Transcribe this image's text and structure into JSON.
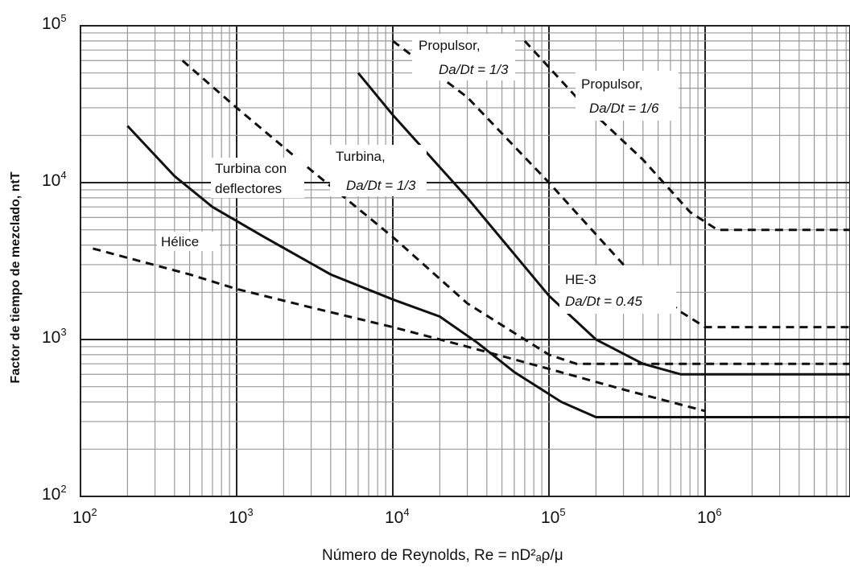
{
  "chart_data": {
    "type": "line",
    "xscale": "log",
    "yscale": "log",
    "xlim": [
      100,
      10000000
    ],
    "ylim": [
      100,
      100000
    ],
    "grid": true,
    "xlabel": "Número de Reynolds, Re = nD²ₐρ/μ",
    "ylabel": "Factor de tiempo de mezclado, ntT",
    "x_ticks": [
      {
        "base": "10",
        "exp": "2",
        "value": 100
      },
      {
        "base": "10",
        "exp": "3",
        "value": 1000
      },
      {
        "base": "10",
        "exp": "4",
        "value": 10000
      },
      {
        "base": "10",
        "exp": "5",
        "value": 100000
      },
      {
        "base": "10",
        "exp": "6",
        "value": 1000000
      }
    ],
    "y_ticks": [
      {
        "base": "10",
        "exp": "2",
        "value": 100
      },
      {
        "base": "10",
        "exp": "3",
        "value": 1000
      },
      {
        "base": "10",
        "exp": "4",
        "value": 10000
      },
      {
        "base": "10",
        "exp": "5",
        "value": 100000
      }
    ],
    "series": [
      {
        "name": "Turbina con deflectores",
        "style": "solid",
        "x": [
          200,
          400,
          700,
          1500,
          4000,
          10000,
          20000,
          35000,
          60000,
          120000,
          200000,
          1000000,
          10000000
        ],
        "y": [
          23000,
          11000,
          7000,
          4500,
          2600,
          1800,
          1400,
          950,
          620,
          400,
          320,
          320,
          320
        ]
      },
      {
        "name": "Turbina, Da/Dt = 1/3",
        "style": "dashed",
        "x": [
          450,
          1000,
          3000,
          10000,
          30000,
          100000,
          150000,
          10000000
        ],
        "y": [
          60000,
          30000,
          12000,
          4500,
          1700,
          800,
          700,
          700
        ]
      },
      {
        "name": "HE-3 Da/Dt = 0.45",
        "style": "solid",
        "x": [
          6000,
          10000,
          30000,
          100000,
          200000,
          400000,
          700000,
          10000000
        ],
        "y": [
          50000,
          27000,
          8000,
          1900,
          1000,
          700,
          600,
          600
        ]
      },
      {
        "name": "Propulsor, Da/Dt = 1/3",
        "style": "dashed",
        "x": [
          10000,
          30000,
          100000,
          300000,
          700000,
          1000000,
          10000000
        ],
        "y": [
          80000,
          35000,
          10000,
          3000,
          1500,
          1200,
          1200
        ]
      },
      {
        "name": "Propulsor, Da/Dt = 1/6",
        "style": "dashed",
        "x": [
          70000,
          150000,
          400000,
          800000,
          1200000,
          2000000,
          10000000
        ],
        "y": [
          80000,
          35000,
          14000,
          6500,
          5000,
          5000,
          5000
        ]
      },
      {
        "name": "Hélice",
        "style": "dashed",
        "x": [
          120,
          500,
          1000,
          3000,
          10000,
          30000,
          100000,
          300000,
          1000000
        ],
        "y": [
          3800,
          2600,
          2100,
          1600,
          1200,
          900,
          650,
          480,
          350
        ]
      }
    ],
    "annotations": {
      "helice": "Hélice",
      "turbina_con_1": "Turbina con",
      "turbina_con_2": "deflectores",
      "turbina_1": "Turbina,",
      "turbina_2": "Da/Dt = 1/3",
      "he3_1": "HE-3",
      "he3_2": "Da/Dt = 0.45",
      "prop13_1": "Propulsor,",
      "prop13_2": "Da/Dt = 1/3",
      "prop16_1": "Propulsor,",
      "prop16_2": "Da/Dt = 1/6"
    }
  }
}
